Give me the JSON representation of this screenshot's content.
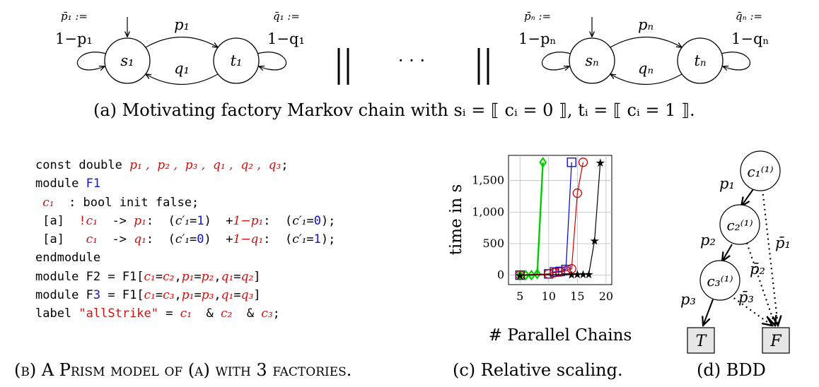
{
  "figure_a": {
    "left_chain": {
      "p_bar_def": "p̄₁ :=",
      "self_loop_s": "1−p₁",
      "trans_sp": "p₁",
      "trans_tq": "q₁",
      "q_bar_def": "q̄₁ :=",
      "self_loop_t": "1−q₁",
      "state_s": "s₁",
      "state_t": "t₁"
    },
    "right_chain": {
      "p_bar_def": "p̄ₙ :=",
      "self_loop_s": "1−pₙ",
      "trans_sp": "pₙ",
      "trans_tq": "qₙ",
      "q_bar_def": "q̄ₙ :=",
      "self_loop_t": "1−qₙ",
      "state_s": "sₙ",
      "state_t": "tₙ"
    },
    "parallel_symbol": "||",
    "ellipsis": "· · ·",
    "caption": "(a) Motivating factory Markov chain with sᵢ = ⟦ cᵢ = 0 ⟧, tᵢ = ⟦ cᵢ = 1 ⟧."
  },
  "figure_b": {
    "caption": "(b) A Prism model of (a) with 3 factories."
  },
  "chart_data": {
    "type": "line",
    "title": "",
    "xlabel": "# Parallel Chains",
    "ylabel": "time in s",
    "xlim": [
      3,
      21
    ],
    "ylim": [
      -150,
      1900
    ],
    "xticks": [
      "5",
      "10",
      "15",
      "20"
    ],
    "yticks": [
      "0",
      "500",
      "1,000",
      "1,500"
    ],
    "grid": true,
    "series": [
      {
        "color": "#00cc00",
        "marker": "diamond",
        "x": [
          5,
          6,
          7,
          8,
          9
        ],
        "y": [
          0,
          0,
          0,
          20,
          1790
        ]
      },
      {
        "color": "#0000cc",
        "marker": "square",
        "x": [
          5,
          10,
          11,
          12,
          13,
          14
        ],
        "y": [
          0,
          20,
          50,
          60,
          90,
          1790
        ]
      },
      {
        "color": "#cc0000",
        "marker": "circle",
        "x": [
          5,
          10,
          11,
          12,
          13,
          14,
          15,
          16
        ],
        "y": [
          0,
          20,
          40,
          50,
          70,
          100,
          1300,
          1790
        ]
      },
      {
        "color": "#000000",
        "marker": "star",
        "x": [
          5,
          14,
          15,
          16,
          17,
          18,
          19
        ],
        "y": [
          0,
          10,
          20,
          20,
          20,
          550,
          1790
        ]
      }
    ],
    "caption": "(c) Relative scaling."
  },
  "figure_d": {
    "nodes": [
      "c₁⁽¹⁾",
      "c₂⁽¹⁾",
      "c₃⁽¹⁾"
    ],
    "edge_labels": {
      "p1": "p₁",
      "p2": "p₂",
      "p3": "p₃",
      "p1bar": "p̄₁",
      "p2bar": "p̄₂",
      "p3bar": "p̄₃"
    },
    "terminals": {
      "true": "T",
      "false": "F"
    },
    "caption": "(d) BDD"
  }
}
